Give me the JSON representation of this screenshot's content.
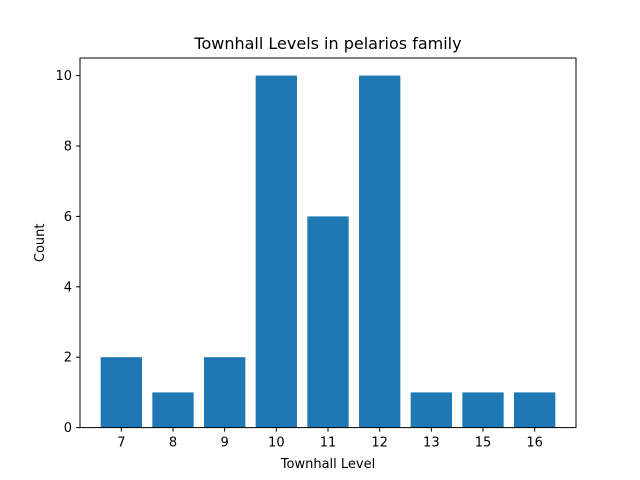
{
  "chart_data": {
    "type": "bar",
    "title": "Townhall Levels in pelarios family",
    "xlabel": "Townhall Level",
    "ylabel": "Count",
    "categories": [
      "7",
      "8",
      "9",
      "10",
      "11",
      "12",
      "13",
      "15",
      "16"
    ],
    "values": [
      2,
      1,
      2,
      10,
      6,
      10,
      1,
      1,
      1
    ],
    "ylim": [
      0,
      10.5
    ],
    "yticks": [
      "0",
      "2",
      "4",
      "6",
      "8",
      "10"
    ],
    "bar_color": "#1f77b4",
    "grid": false,
    "legend": "none"
  }
}
